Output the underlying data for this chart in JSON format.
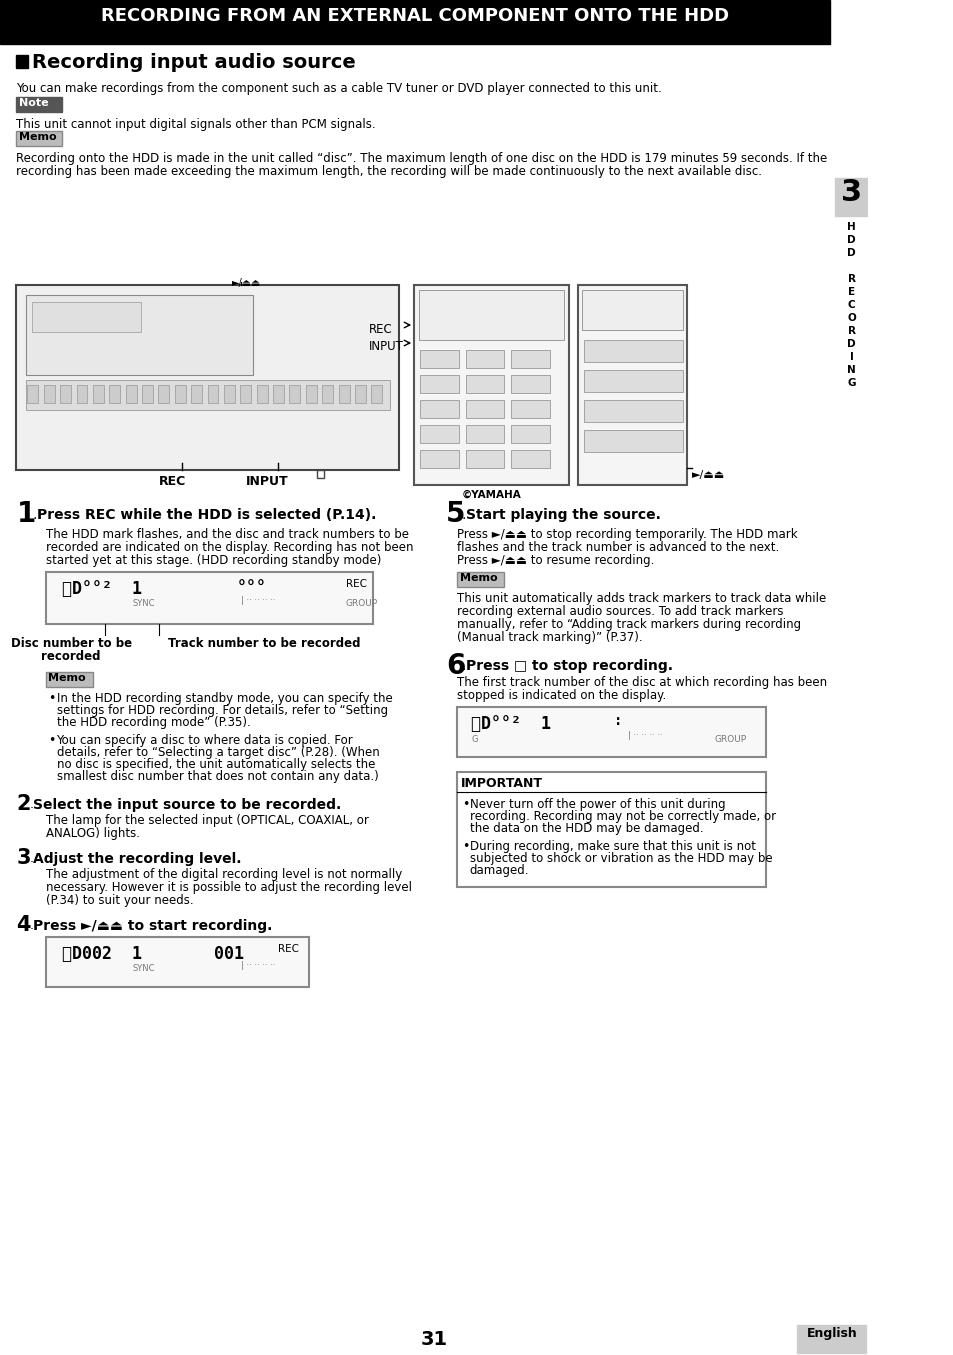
{
  "page_bg": "#ffffff",
  "header_bg": "#000000",
  "header_text": "RECORDING FROM AN EXTERNAL COMPONENT ONTO THE HDD",
  "header_text_color": "#ffffff",
  "section_title": "Recording input audio source",
  "intro_text": "You can make recordings from the component such as a cable TV tuner or DVD player connected to this unit.",
  "note_label": "Note",
  "note_text": "This unit cannot input digital signals other than PCM signals.",
  "memo_label": "Memo",
  "memo_text1a": "Recording onto the HDD is made in the unit called “disc”. The maximum length of one disc on the HDD is 179 minutes 59 seconds. If the",
  "memo_text1b": "recording has been made exceeding the maximum length, the recording will be made continuously to the next available disc.",
  "step1_num": "1",
  "step1_bold": "Press REC while the HDD is selected (P.14).",
  "step1_lines": [
    "The HDD mark flashes, and the disc and track numbers to be",
    "recorded are indicated on the display. Recording has not been",
    "started yet at this stage. (HDD recording standby mode)"
  ],
  "disc_label1": "Disc number to be",
  "disc_label2": "recorded",
  "track_label": "Track number to be recorded",
  "memo2_label": "Memo",
  "memo2_bullets": [
    "In the HDD recording standby mode, you can specify the settings for HDD recording. For details, refer to “Setting the HDD recording mode” (P.35).",
    "You can specify a disc to where data is copied. For details, refer to “Selecting a target disc” (P.28). (When no disc is specified, the unit automatically selects the smallest disc number that does not contain any data.)"
  ],
  "step2_num": "2",
  "step2_bold": "Select the input source to be recorded.",
  "step2_lines": [
    "The lamp for the selected input (OPTICAL, COAXIAL, or",
    "ANALOG) lights."
  ],
  "step3_num": "3",
  "step3_bold": "Adjust the recording level.",
  "step3_lines": [
    "The adjustment of the digital recording level is not normally",
    "necessary. However it is possible to adjust the recording level",
    "(P.34) to suit your needs."
  ],
  "step4_num": "4",
  "step4_bold": "Press ►/⏏⏏ to start recording.",
  "step5_num": "5",
  "step5_bold": "Start playing the source.",
  "step5_lines": [
    "Press ►/⏏⏏ to stop recording temporarily. The HDD mark",
    "flashes and the track number is advanced to the next.",
    "Press ►/⏏⏏ to resume recording."
  ],
  "memo3_label": "Memo",
  "memo3_lines": [
    "This unit automatically adds track markers to track data while",
    "recording external audio sources. To add track markers",
    "manually, refer to “Adding track markers during recording",
    "(Manual track marking)” (P.37)."
  ],
  "step6_num": "6",
  "step6_bold": "Press □ to stop recording.",
  "step6_lines": [
    "The first track number of the disc at which recording has been",
    "stopped is indicated on the display."
  ],
  "important_label": "IMPORTANT",
  "important_bullets": [
    "Never turn off the power of this unit during recording. Recording may not be correctly made, or the data on the HDD may be damaged.",
    "During recording, make sure that this unit is not subjected to shock or vibration as the HDD may be damaged."
  ],
  "chapter_num": "3",
  "page_num": "31",
  "eng_label": "English",
  "rec_label": "REC",
  "input_label": "INPUT"
}
